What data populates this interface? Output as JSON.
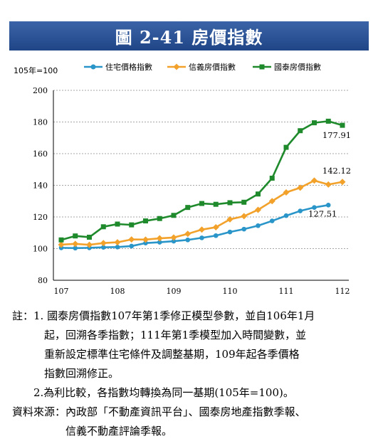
{
  "header": {
    "title": "圖 2-41  房價指數"
  },
  "unit_label": "105年=100",
  "chart_data": {
    "type": "line",
    "title": "",
    "xlabel": "",
    "ylabel": "",
    "ylim": [
      80,
      200
    ],
    "yticks": [
      "80",
      "100",
      "120",
      "140",
      "160",
      "180",
      "200"
    ],
    "xticks": [
      "107",
      "108",
      "109",
      "110",
      "111",
      "112"
    ],
    "grid": "horizontal dashed",
    "legend": "top",
    "series": [
      {
        "name": "住宅價格指數",
        "color": "#2a95c8",
        "marker": "circle",
        "x": [
          107.0,
          107.25,
          107.5,
          107.75,
          108.0,
          108.25,
          108.5,
          108.75,
          109.0,
          109.25,
          109.5,
          109.75,
          110.0,
          110.25,
          110.5,
          110.75,
          111.0,
          111.25,
          111.5,
          111.75
        ],
        "values": [
          100.5,
          100.3,
          100.5,
          100.8,
          101.0,
          101.6,
          103.5,
          104.0,
          104.7,
          105.5,
          106.8,
          108.2,
          110.5,
          112.3,
          114.5,
          117.5,
          120.8,
          123.8,
          126.0,
          127.51
        ],
        "end_label": "127.51"
      },
      {
        "name": "信義房價指數",
        "color": "#f2a22b",
        "marker": "diamond",
        "x": [
          107.0,
          107.25,
          107.5,
          107.75,
          108.0,
          108.25,
          108.5,
          108.75,
          109.0,
          109.25,
          109.5,
          109.75,
          110.0,
          110.25,
          110.5,
          110.75,
          111.0,
          111.25,
          111.5,
          111.75,
          112.0
        ],
        "values": [
          102.5,
          103.0,
          102.4,
          103.5,
          104.0,
          105.8,
          105.7,
          106.5,
          107.0,
          109.3,
          112.0,
          113.5,
          118.5,
          120.5,
          124.5,
          130.0,
          135.5,
          138.5,
          143.0,
          140.5,
          142.12
        ],
        "end_label": "142.12"
      },
      {
        "name": "國泰房價指數",
        "color": "#1f8a2c",
        "marker": "square",
        "x": [
          107.0,
          107.25,
          107.5,
          107.75,
          108.0,
          108.25,
          108.5,
          108.75,
          109.0,
          109.25,
          109.5,
          109.75,
          110.0,
          110.25,
          110.5,
          110.75,
          111.0,
          111.25,
          111.5,
          111.75,
          112.0
        ],
        "values": [
          105.5,
          108.0,
          107.2,
          113.8,
          115.5,
          115.0,
          117.5,
          119.0,
          121.0,
          126.0,
          128.5,
          128.0,
          129.0,
          129.3,
          134.5,
          144.5,
          164.0,
          174.5,
          179.5,
          180.5,
          177.91
        ],
        "end_label": "177.91"
      }
    ]
  },
  "notes": [
    "註：1. 國泰房價指數107年第1季修正模型參數，並自106年1月",
    "　　　起，回溯各季指數；111年第1季模型加入時間變數，並",
    "　　　重新設定標準住宅條件及調整基期，109年起各季價格",
    "　　　指數回溯修正。",
    "　　2.為利比較，各指數均轉換為同一基期(105年=100)。",
    "資料來源：內政部「不動產資訊平台」、國泰房地產指數季報、",
    "　　　　　信義不動產評論季報。"
  ]
}
